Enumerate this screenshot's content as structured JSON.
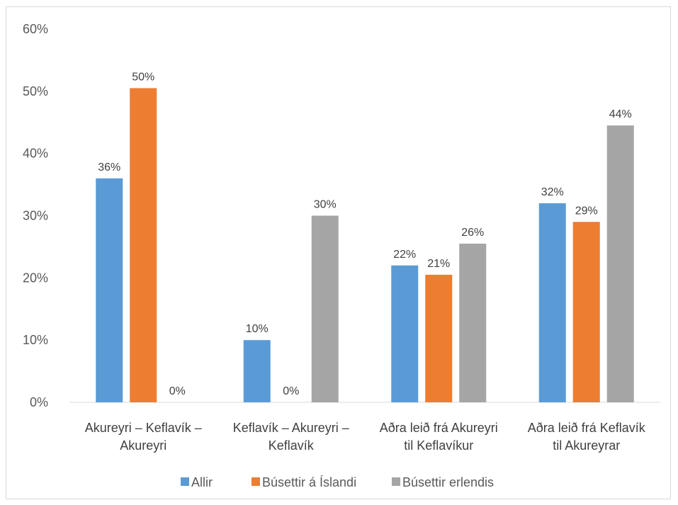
{
  "chart_data": {
    "type": "bar",
    "categories": [
      [
        "Akureyri – Keflavík –",
        "Akureyri"
      ],
      [
        "Keflavík – Akureyri –",
        "Keflavík"
      ],
      [
        "Aðra leið frá Akureyri",
        "til Keflavíkur"
      ],
      [
        "Aðra leið frá Keflavík",
        "til Akureyrar"
      ]
    ],
    "series": [
      {
        "name": "Allir",
        "color": "#5b9bd5",
        "values": [
          36,
          10,
          22,
          32
        ],
        "labels": [
          "36%",
          "10%",
          "22%",
          "32%"
        ]
      },
      {
        "name": "Búsettir á Íslandi",
        "color": "#ed7d31",
        "values": [
          50.5,
          0,
          20.5,
          29
        ],
        "labels": [
          "50%",
          "0%",
          "21%",
          "29%"
        ]
      },
      {
        "name": "Búsettir erlendis",
        "color": "#a5a5a5",
        "values": [
          0,
          30,
          25.5,
          44.5
        ],
        "labels": [
          "0%",
          "30%",
          "26%",
          "44%"
        ]
      }
    ],
    "y_ticks": [
      "0%",
      "10%",
      "20%",
      "30%",
      "40%",
      "50%",
      "60%"
    ],
    "ylim": [
      0,
      60
    ],
    "grid": false,
    "legend_position": "bottom"
  }
}
